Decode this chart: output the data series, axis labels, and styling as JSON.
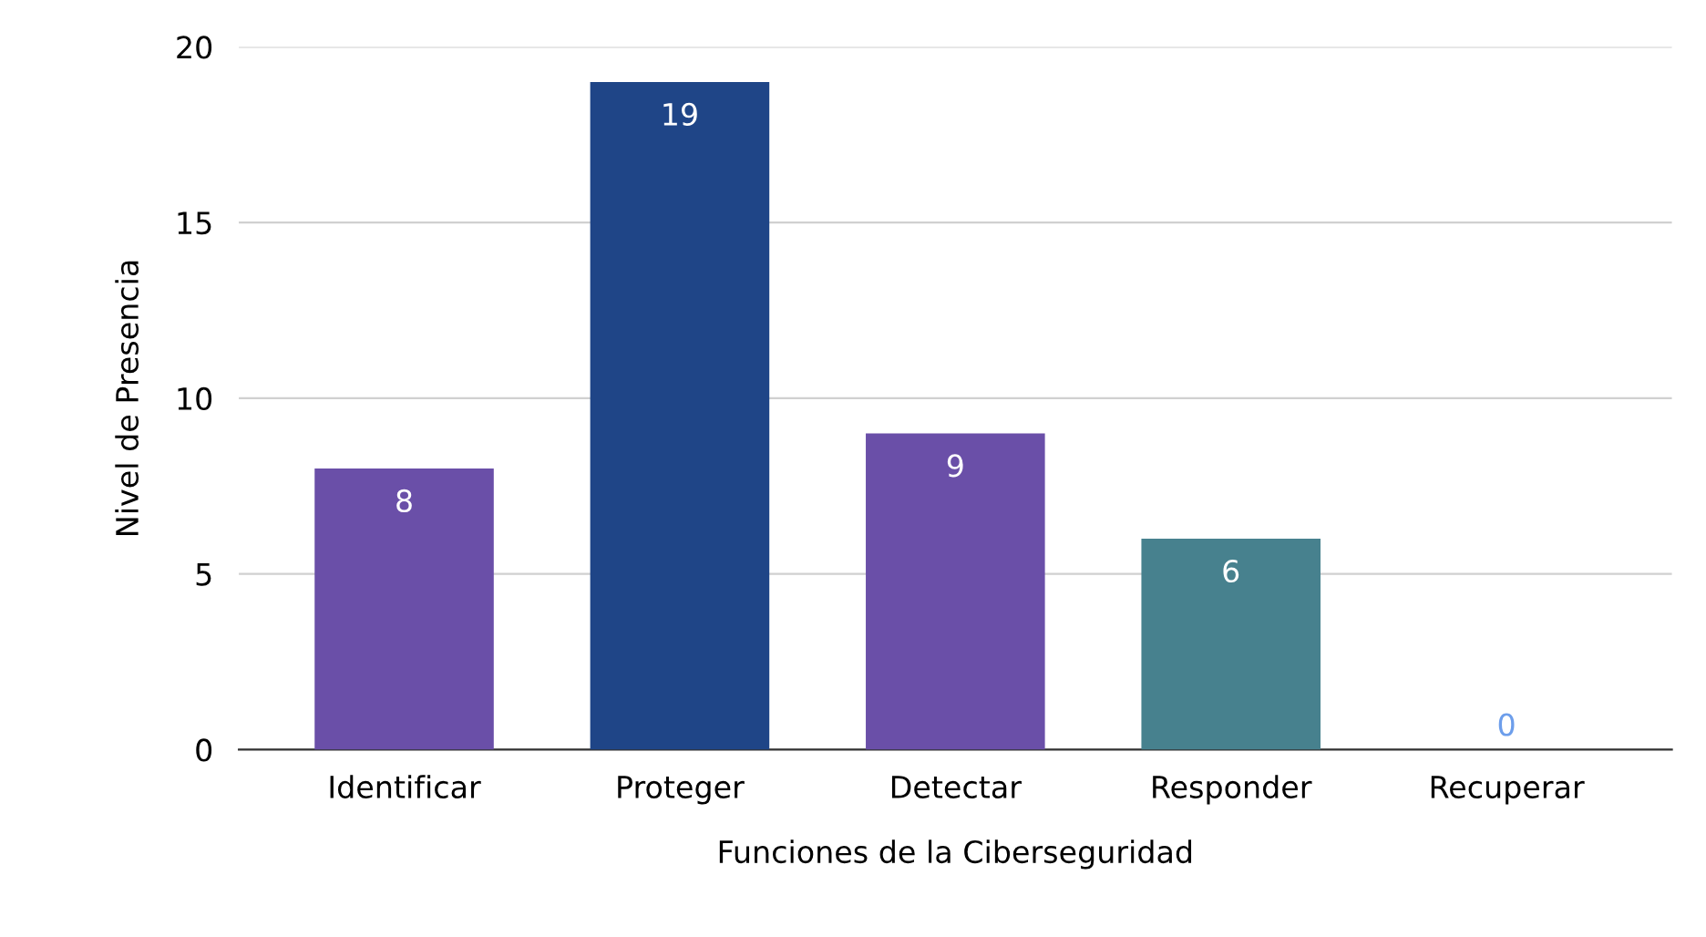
{
  "chart_data": {
    "type": "bar",
    "xlabel": "Funciones de la Ciberseguridad",
    "ylabel": "Nivel de Presencia",
    "categories": [
      "Identificar",
      "Proteger",
      "Detectar",
      "Responder",
      "Recuperar"
    ],
    "values": [
      8,
      19,
      9,
      6,
      0
    ],
    "colors": [
      "#6a4fa8",
      "#1f4587",
      "#6a4fa8",
      "#47818e",
      "#6d9eeb"
    ],
    "ylim": [
      0,
      20
    ],
    "yticks": [
      0,
      5,
      10,
      15,
      20
    ],
    "grid": "y",
    "data_labels": true
  }
}
